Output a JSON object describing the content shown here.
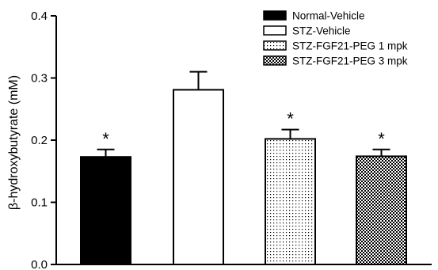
{
  "chart_data": {
    "type": "bar",
    "title": "",
    "xlabel": "",
    "ylabel": "β-hydroxybutyrate (mM)",
    "ylim": [
      0,
      0.4
    ],
    "yticks": [
      "0.0",
      "0.1",
      "0.2",
      "0.3",
      "0.4"
    ],
    "ytick_values": [
      0,
      0.1,
      0.2,
      0.3,
      0.4
    ],
    "grid": false,
    "legend_position": "top-right",
    "categories": [
      "Normal-Vehicle",
      "STZ-Vehicle",
      "STZ-FGF21-PEG 1 mpk",
      "STZ-FGF21-PEG 3 mpk"
    ],
    "values": [
      0.173,
      0.281,
      0.202,
      0.174
    ],
    "errors": [
      0.012,
      0.029,
      0.015,
      0.011
    ],
    "significance": [
      "*",
      "",
      "*",
      "*"
    ],
    "fills": [
      "solid-black",
      "white",
      "dots",
      "crosshatch"
    ]
  },
  "colors": {
    "axis": "#000000",
    "bar_black": "#000000",
    "bar_white": "#ffffff"
  }
}
